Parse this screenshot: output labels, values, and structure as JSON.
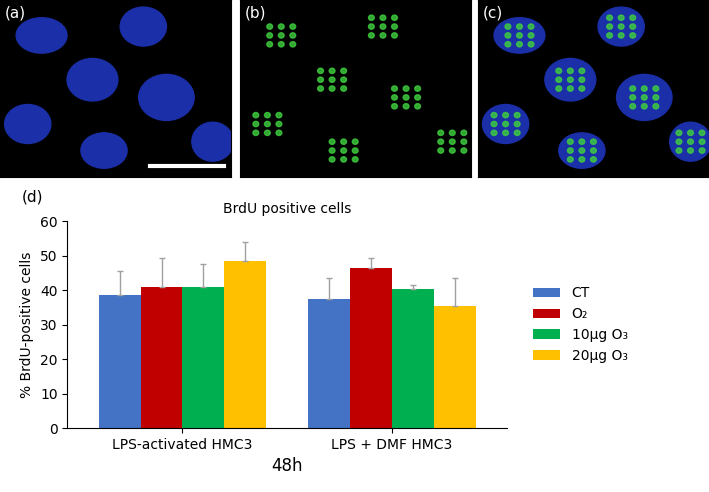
{
  "panel_labels": [
    "(a)",
    "(b)",
    "(c)",
    "(d)"
  ],
  "chart_data": {
    "type": "bar",
    "title": "BrdU positive cells",
    "y_label": "% BrdU-positive cells",
    "x_label": "48h",
    "categories": [
      "LPS-activated HMC3",
      "LPS + DMF HMC3"
    ],
    "series": [
      {
        "name": "CT",
        "color": "#4472C4",
        "values": [
          38.5,
          37.5
        ],
        "error": [
          7,
          6
        ]
      },
      {
        "name": "O₂",
        "color": "#C00000",
        "values": [
          41,
          46.5
        ],
        "error": [
          8.5,
          3
        ]
      },
      {
        "name": "10µg O₃",
        "color": "#00B050",
        "values": [
          41,
          40.3
        ],
        "error": [
          6.5,
          1.2
        ]
      },
      {
        "name": "20µg O₃",
        "color": "#FFC000",
        "values": [
          48.5,
          35.5
        ],
        "error": [
          5.5,
          8
        ]
      }
    ],
    "ylim": [
      0,
      60
    ],
    "yticks": [
      0,
      10,
      20,
      30,
      40,
      50,
      60
    ],
    "legend": "right",
    "grid": false
  }
}
